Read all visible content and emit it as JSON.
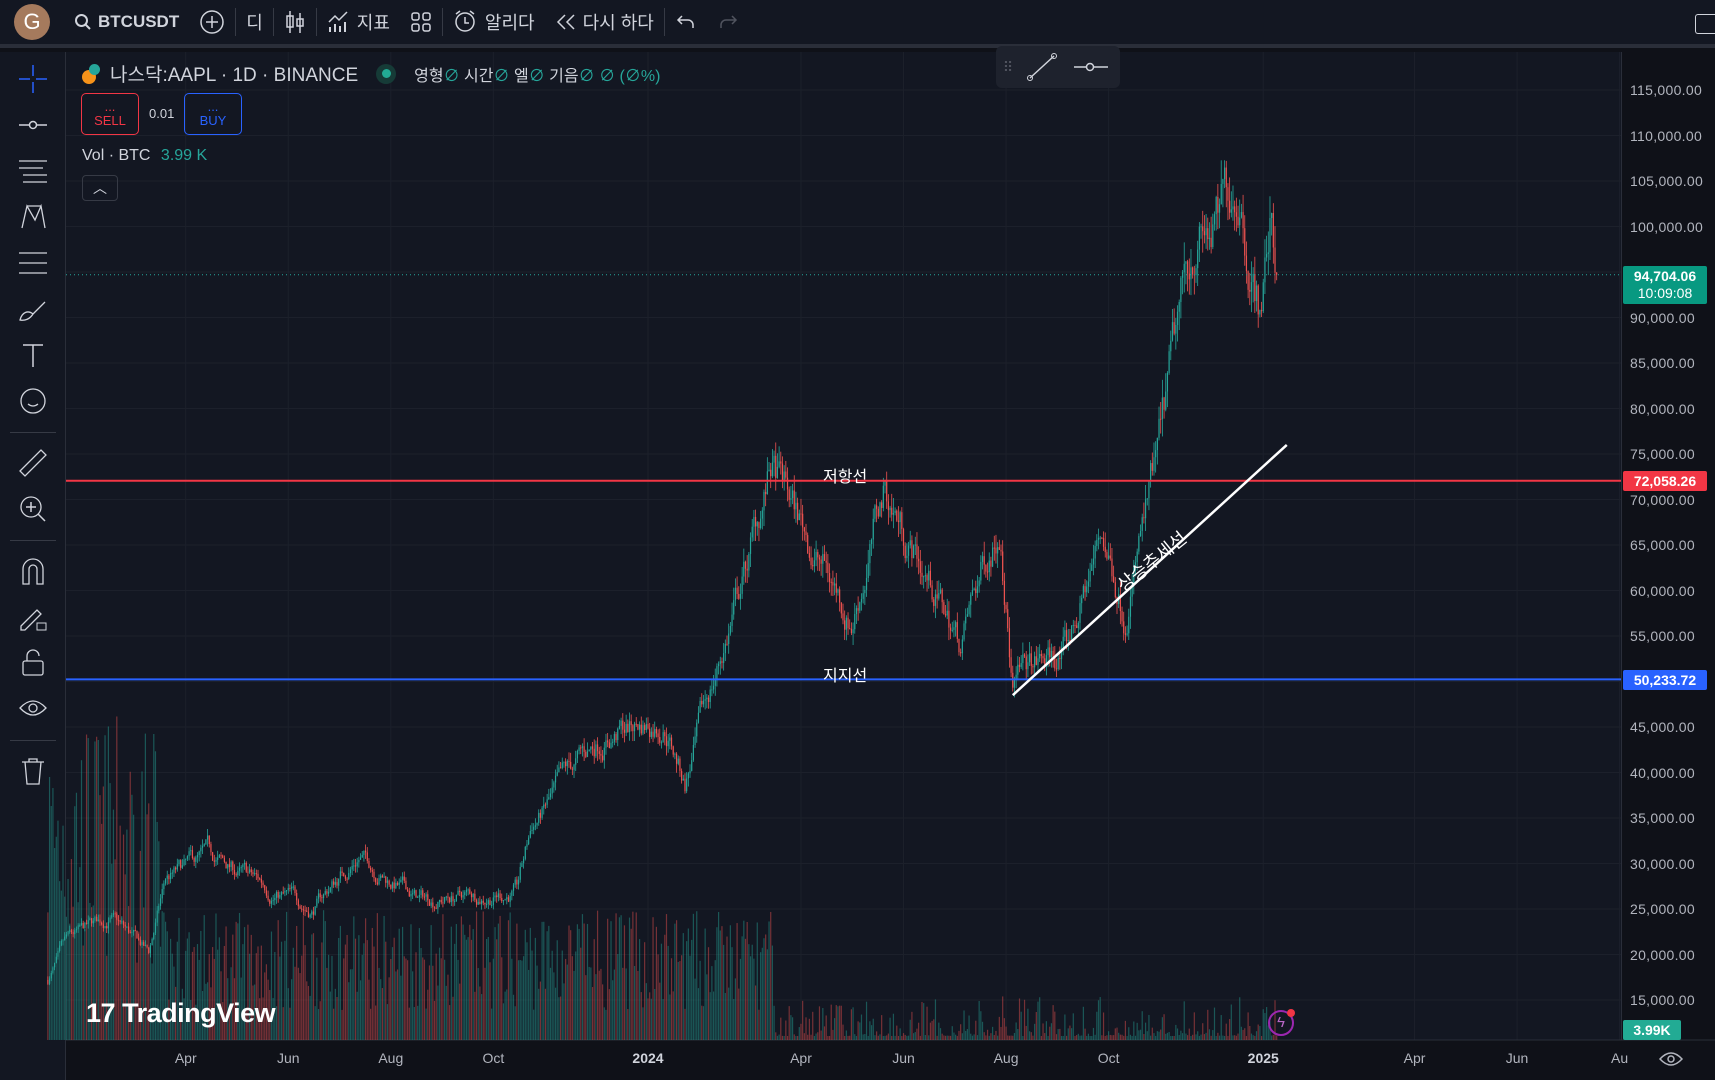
{
  "topbar": {
    "avatar_letter": "G",
    "symbol": "BTCUSDT",
    "interval": "디",
    "indicators": "지표",
    "alert": "알리다",
    "replay": "다시 하다"
  },
  "legend": {
    "title": "나스닥:AAPL · 1D · BINANCE",
    "o_label": "영형",
    "o_val": "∅",
    "h_label": "시간",
    "h_val": "∅",
    "l_label": "엘",
    "l_val": "∅",
    "c_label": "기음",
    "c_val": "∅",
    "change": "∅ (∅%)"
  },
  "trade": {
    "sell_dots": "...",
    "sell": "SELL",
    "qty": "0.01",
    "buy_dots": "...",
    "buy": "BUY"
  },
  "volume": {
    "label": "Vol · BTC",
    "value": "3.99 K"
  },
  "price_axis": [
    "115,000.00",
    "110,000.00",
    "105,000.00",
    "100,000.00",
    "90,000.00",
    "85,000.00",
    "80,000.00",
    "75,000.00",
    "70,000.00",
    "65,000.00",
    "60,000.00",
    "55,000.00",
    "45,000.00",
    "40,000.00",
    "35,000.00",
    "30,000.00",
    "25,000.00",
    "20,000.00",
    "15,000.00"
  ],
  "tags": {
    "last_price": "94,704.06",
    "countdown": "10:09:08",
    "resistance_price": "72,058.26",
    "support_price": "50,233.72",
    "volume": "3.99K"
  },
  "time_axis": [
    "Apr",
    "Jun",
    "Aug",
    "Oct",
    "2024",
    "Apr",
    "Jun",
    "Aug",
    "Oct",
    "2025",
    "Apr",
    "Jun",
    "Au"
  ],
  "annotations": {
    "resistance": "저항선",
    "support": "지지선",
    "trend": "상승추세선"
  },
  "watermark": "TradingView",
  "colors": {
    "up": "#26a69a",
    "down": "#ef5350",
    "resistance": "#f23645",
    "support": "#2962ff",
    "bg": "#131722"
  },
  "chart_data": {
    "type": "candlestick",
    "symbol": "BTCUSDT",
    "interval": "1D",
    "ylim": [
      12000,
      118000
    ],
    "price_path": [
      [
        "2023-01-09",
        17200
      ],
      [
        "2023-01-20",
        21000
      ],
      [
        "2023-02-15",
        24000
      ],
      [
        "2023-03-10",
        20000
      ],
      [
        "2023-03-20",
        28000
      ],
      [
        "2023-04-14",
        30500
      ],
      [
        "2023-06-15",
        25000
      ],
      [
        "2023-07-13",
        31000
      ],
      [
        "2023-08-17",
        26000
      ],
      [
        "2023-10-15",
        27000
      ],
      [
        "2023-10-24",
        34000
      ],
      [
        "2023-12-05",
        44000
      ],
      [
        "2024-01-11",
        46000
      ],
      [
        "2024-01-23",
        39000
      ],
      [
        "2024-02-28",
        62000
      ],
      [
        "2024-03-14",
        73000
      ],
      [
        "2024-05-01",
        57000
      ],
      [
        "2024-05-21",
        71000
      ],
      [
        "2024-07-05",
        54000
      ],
      [
        "2024-07-29",
        69000
      ],
      [
        "2024-08-05",
        50000
      ],
      [
        "2024-09-06",
        53000
      ],
      [
        "2024-09-27",
        66000
      ],
      [
        "2024-10-10",
        59000
      ],
      [
        "2024-10-29",
        72000
      ],
      [
        "2024-11-12",
        88000
      ],
      [
        "2024-11-22",
        99000
      ],
      [
        "2024-12-05",
        99000
      ],
      [
        "2024-12-17",
        106000
      ],
      [
        "2024-12-30",
        92000
      ],
      [
        "2025-01-06",
        101000
      ],
      [
        "2025-01-09",
        94704
      ]
    ],
    "horizontal_lines": [
      {
        "label": "저항선",
        "price": 72058.26
      },
      {
        "label": "지지선",
        "price": 50233.72
      }
    ],
    "trend_line": {
      "label": "상승추세선",
      "from": [
        "2024-08-05",
        48500
      ],
      "to": [
        "2025-01-15",
        76000
      ]
    }
  }
}
